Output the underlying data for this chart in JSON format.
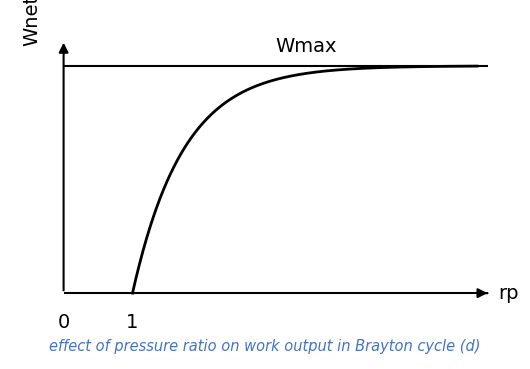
{
  "title": "effect of pressure ratio on work output in Brayton cycle (d)",
  "title_color": "#4472C4",
  "title_fontsize": 10.5,
  "ylabel": "Wnet",
  "xlabel": "rp",
  "wmax_label": "Wmax",
  "tick_0": "0",
  "tick_1": "1",
  "background_color": "#ffffff",
  "curve_color": "#000000",
  "line_color": "#000000",
  "figsize": [
    5.3,
    3.69
  ],
  "dpi": 100,
  "curve_k": 0.45,
  "curve_rp_max": 15.0
}
